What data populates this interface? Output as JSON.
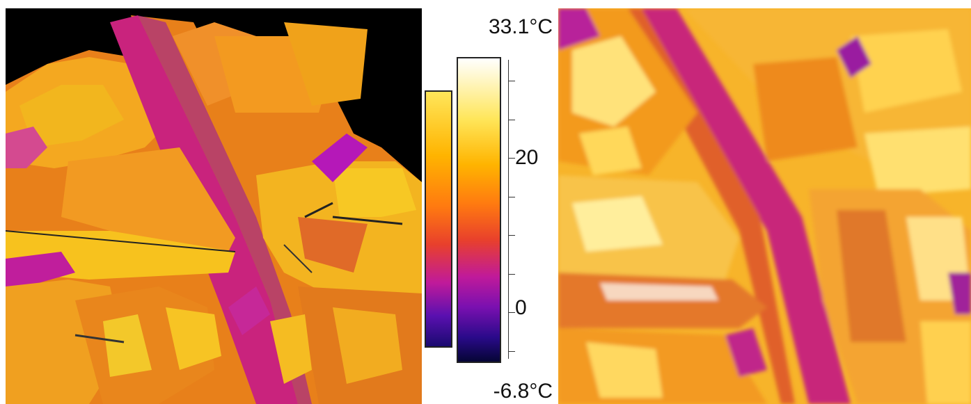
{
  "legend": {
    "max_label": "33.1°C",
    "min_label": "-6.8°C",
    "ticks": [
      "20",
      "0"
    ]
  },
  "colors": {
    "colormap": [
      "#ffffff",
      "#ffe65a",
      "#ffb400",
      "#ff7a10",
      "#e8402c",
      "#c01a9a",
      "#7a10b0",
      "#2a0a8a",
      "#050535"
    ],
    "sky": "#000000"
  }
}
